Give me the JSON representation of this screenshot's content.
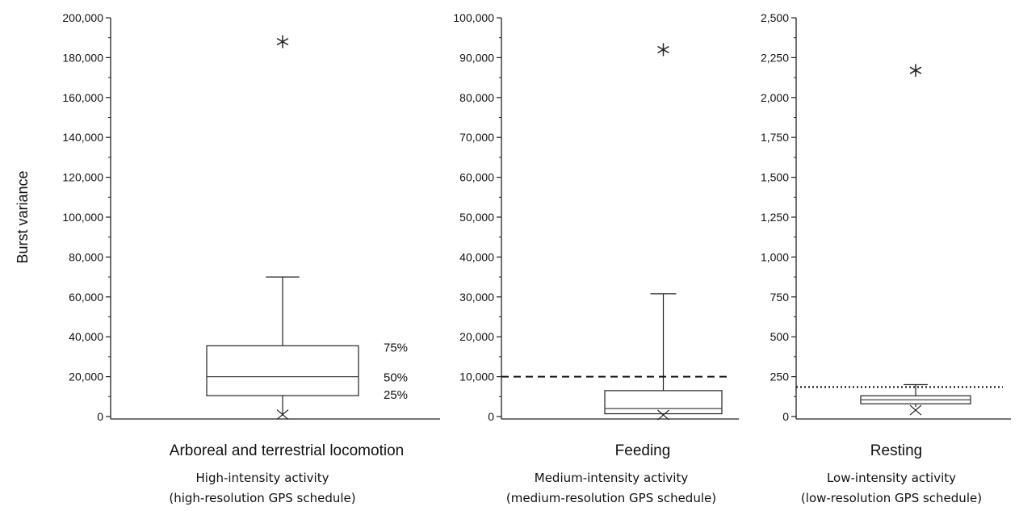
{
  "chart_data": [
    {
      "type": "box",
      "ylabel": "Burst variance",
      "xlabel": "Arboreal and terrestrial locomotion",
      "caption": [
        "High-intensity activity",
        "(high-resolution GPS schedule)"
      ],
      "ylim": [
        0,
        200000
      ],
      "yticks": [
        0,
        20000,
        40000,
        60000,
        80000,
        100000,
        120000,
        140000,
        160000,
        180000,
        200000
      ],
      "ytick_labels": [
        "0",
        "20,000",
        "40,000",
        "60,000",
        "80,000",
        "100,000",
        "120,000",
        "140,000",
        "160,000",
        "180,000",
        "200,000"
      ],
      "box": {
        "whisker_low": 500,
        "q1": 10500,
        "median": 20000,
        "q3": 35500,
        "whisker_high": 70000,
        "minimum_marker": 1000,
        "max_outlier": 188000
      },
      "percentile_labels": [
        "75%",
        "50%",
        "25%"
      ]
    },
    {
      "type": "box",
      "xlabel": "Feeding",
      "caption": [
        "Medium-intensity activity",
        "(medium-resolution GPS schedule)"
      ],
      "ylim": [
        0,
        100000
      ],
      "yticks": [
        0,
        10000,
        20000,
        30000,
        40000,
        50000,
        60000,
        70000,
        80000,
        90000,
        100000
      ],
      "ytick_labels": [
        "0",
        "10,000",
        "20,000",
        "30,000",
        "40,000",
        "50,000",
        "60,000",
        "70,000",
        "80,000",
        "90,000",
        "100,000"
      ],
      "box": {
        "whisker_low": 300,
        "q1": 700,
        "median": 2000,
        "q3": 6500,
        "whisker_high": 30800,
        "minimum_marker": 400,
        "max_outlier": 92000
      },
      "threshold": 10000,
      "threshold_style": "dashed"
    },
    {
      "type": "box",
      "xlabel": "Resting",
      "caption": [
        "Low-intensity activity",
        "(low-resolution GPS schedule)"
      ],
      "ylim": [
        0,
        2500
      ],
      "yticks": [
        0,
        250,
        500,
        750,
        1000,
        1250,
        1500,
        1750,
        2000,
        2250,
        2500
      ],
      "ytick_labels": [
        "0",
        "250",
        "500",
        "750",
        "1,000",
        "1,250",
        "1,500",
        "1,750",
        "2,000",
        "2,250",
        "2,500"
      ],
      "box": {
        "whisker_low": 60,
        "q1": 80,
        "median": 105,
        "q3": 130,
        "whisker_high": 200,
        "minimum_marker": 40,
        "max_outlier": 2170
      },
      "threshold": 185,
      "threshold_style": "dotted"
    }
  ]
}
